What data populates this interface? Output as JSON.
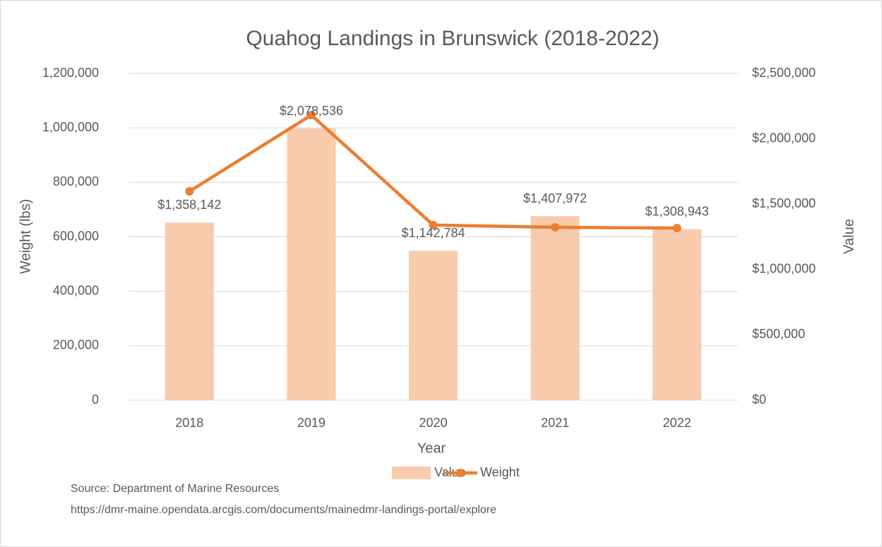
{
  "chart_data": {
    "type": "combo",
    "title": "Quahog Landings in Brunswick (2018-2022)",
    "x_label": "Year",
    "y_label": "Weight (lbs)",
    "y2_label": "Value",
    "categories": [
      "2018",
      "2019",
      "2020",
      "2021",
      "2022"
    ],
    "series": [
      {
        "name": "Value",
        "type": "bar",
        "axis": "y2",
        "color": "#f8cbad",
        "values": [
          1358142,
          2078536,
          1142784,
          1407972,
          1308943
        ],
        "value_labels": [
          "$1,358,142",
          "$2,078,536",
          "$1,142,784",
          "$1,407,972",
          "$1,308,943"
        ]
      },
      {
        "name": "Weight",
        "type": "line",
        "color": "#ed7d31",
        "values": [
          767000,
          1047000,
          643000,
          635000,
          632000
        ]
      }
    ],
    "ylim": [
      0,
      1200000
    ],
    "yticks": [
      0,
      {
        "value": 200000,
        "label": "200,000"
      },
      {
        "value": 400000,
        "label": "400,000"
      },
      {
        "value": 600000,
        "label": "600,000"
      },
      {
        "value": 800000,
        "label": "800,000"
      },
      {
        "value": 1000000,
        "label": "1,000,000"
      },
      {
        "value": 1200000,
        "label": "1,200,000"
      }
    ],
    "y2lim": [
      0,
      2500000
    ],
    "y2ticks": [
      {
        "value": 0,
        "label": "$0"
      },
      {
        "value": 500000,
        "label": "$500,000"
      },
      {
        "value": 1000000,
        "label": "$1,000,000"
      },
      {
        "value": 1500000,
        "label": "$1,500,000"
      },
      {
        "value": 2000000,
        "label": "$2,000,000"
      },
      {
        "value": 2500000,
        "label": "$2,500,000"
      }
    ],
    "grid": true,
    "legend": "bottom",
    "notes": [
      "Source: Department of Marine Resources",
      "https://dmr-maine.opendata.arcgis.com/documents/mainedmr-landings-portal/explore"
    ]
  }
}
